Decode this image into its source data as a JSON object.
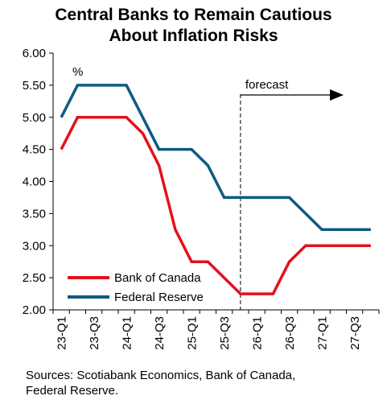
{
  "chart_data": {
    "type": "line",
    "title_lines": [
      "Central Banks to Remain Cautious",
      "About Inflation Risks"
    ],
    "ylabel": "%",
    "ylim": [
      2.0,
      6.0
    ],
    "yticks": [
      "2.00",
      "2.50",
      "3.00",
      "3.50",
      "4.00",
      "4.50",
      "5.00",
      "5.50",
      "6.00"
    ],
    "x": [
      "23-Q1",
      "23-Q2",
      "23-Q3",
      "23-Q4",
      "24-Q1",
      "24-Q2",
      "24-Q3",
      "24-Q4",
      "25-Q1",
      "25-Q2",
      "25-Q3",
      "25-Q4",
      "26-Q1",
      "26-Q2",
      "26-Q3",
      "26-Q4",
      "27-Q1",
      "27-Q2",
      "27-Q3",
      "27-Q4"
    ],
    "xtick_labels": [
      "23-Q1",
      "23-Q3",
      "24-Q1",
      "24-Q3",
      "25-Q1",
      "25-Q3",
      "26-Q1",
      "26-Q3",
      "27-Q1",
      "27-Q3"
    ],
    "series": [
      {
        "name": "Bank of Canada",
        "color": "#e3111b",
        "values": [
          4.5,
          5.0,
          5.0,
          5.0,
          5.0,
          4.75,
          4.25,
          3.25,
          2.75,
          2.75,
          2.5,
          2.25,
          2.25,
          2.25,
          2.75,
          3.0,
          3.0,
          3.0,
          3.0,
          3.0
        ]
      },
      {
        "name": "Federal Reserve",
        "color": "#0e5a84",
        "values": [
          5.0,
          5.5,
          5.5,
          5.5,
          5.5,
          5.0,
          4.5,
          4.5,
          4.5,
          4.25,
          3.75,
          3.75,
          3.75,
          3.75,
          3.75,
          3.5,
          3.25,
          3.25,
          3.25,
          3.25
        ]
      }
    ],
    "forecast_label": "forecast",
    "forecast_start": "25-Q4",
    "legend_position": "bottom-left"
  },
  "source_text": "Sources: Scotiabank Economics, Bank of Canada,",
  "source_text_2": "Federal Reserve."
}
